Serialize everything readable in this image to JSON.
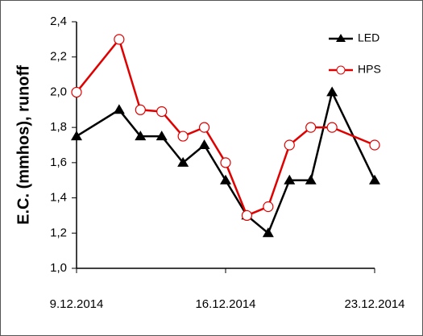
{
  "chart_data": {
    "type": "line",
    "y_label": "E.C. (mmhos),  runoff",
    "x": [
      "2014-12-09",
      "2014-12-11",
      "2014-12-12",
      "2014-12-13",
      "2014-12-14",
      "2014-12-15",
      "2014-12-16",
      "2014-12-17",
      "2014-12-18",
      "2014-12-19",
      "2014-12-20",
      "2014-12-21",
      "2014-12-23"
    ],
    "series": [
      {
        "name": "LED",
        "color": "#000000",
        "values": [
          1.75,
          1.9,
          1.75,
          1.75,
          1.6,
          1.7,
          1.5,
          1.3,
          1.2,
          1.5,
          1.5,
          2.0,
          1.5
        ]
      },
      {
        "name": "HPS",
        "color": "#e00000",
        "values": [
          2.0,
          2.3,
          1.9,
          1.89,
          1.75,
          1.8,
          1.6,
          1.3,
          1.35,
          1.7,
          1.8,
          1.8,
          1.7
        ]
      }
    ],
    "xlim": [
      "2014-12-09",
      "2014-12-23"
    ],
    "xticks": [
      {
        "value": "2014-12-09",
        "label": "9.12.2014"
      },
      {
        "value": "2014-12-16",
        "label": "16.12.2014"
      },
      {
        "value": "2014-12-23",
        "label": "23.12.2014"
      }
    ],
    "ylim": [
      1.0,
      2.4
    ],
    "yticks": [
      {
        "value": 1.0,
        "label": "1,0"
      },
      {
        "value": 1.2,
        "label": "1,2"
      },
      {
        "value": 1.4,
        "label": "1,4"
      },
      {
        "value": 1.6,
        "label": "1,6"
      },
      {
        "value": 1.8,
        "label": "1,8"
      },
      {
        "value": 2.0,
        "label": "2,0"
      },
      {
        "value": 2.2,
        "label": "2,2"
      },
      {
        "value": 2.4,
        "label": "2,4"
      }
    ],
    "legend": "upper-right",
    "grid": false
  }
}
